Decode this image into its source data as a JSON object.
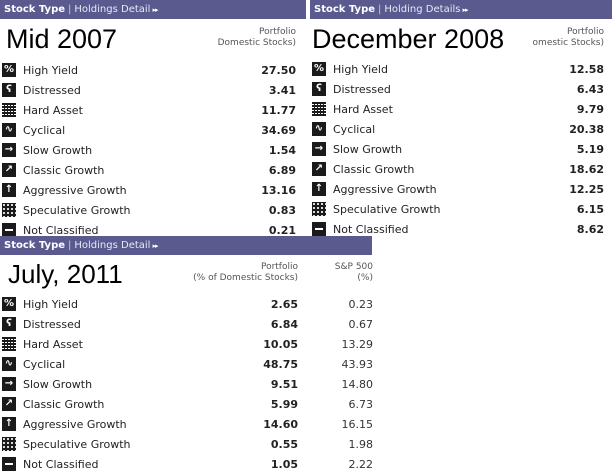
{
  "panels": [
    {
      "tab_stock_type": "Stock Type",
      "sep": "|",
      "tab_holdings": "Holdings Detail",
      "arrows": "▸▸",
      "period": "Mid 2007",
      "col1": [
        "Portfolio",
        "Domestic Stocks)"
      ],
      "rows": [
        {
          "label": "High Yield",
          "v1": "27.50",
          "icon": "high-yield-icon"
        },
        {
          "label": "Distressed",
          "v1": "3.41",
          "icon": "distressed-icon"
        },
        {
          "label": "Hard Asset",
          "v1": "11.77",
          "icon": "hard-asset-icon"
        },
        {
          "label": "Cyclical",
          "v1": "34.69",
          "icon": "cyclical-icon"
        },
        {
          "label": "Slow Growth",
          "v1": "1.54",
          "icon": "slow-growth-icon"
        },
        {
          "label": "Classic Growth",
          "v1": "6.89",
          "icon": "classic-growth-icon"
        },
        {
          "label": "Aggressive Growth",
          "v1": "13.16",
          "icon": "aggressive-growth-icon"
        },
        {
          "label": "Speculative Growth",
          "v1": "0.83",
          "icon": "speculative-growth-icon"
        },
        {
          "label": "Not Classified",
          "v1": "0.21",
          "icon": "not-classified-icon"
        }
      ]
    },
    {
      "tab_stock_type": "Stock Type",
      "sep": "|",
      "tab_holdings": "Holding Details",
      "arrows": "▸▸",
      "period": "December 2008",
      "col1": [
        "Portfolio",
        "omestic Stocks)"
      ],
      "rows": [
        {
          "label": "High Yield",
          "v1": "12.58",
          "icon": "high-yield-icon"
        },
        {
          "label": "Distressed",
          "v1": "6.43",
          "icon": "distressed-icon"
        },
        {
          "label": "Hard Asset",
          "v1": "9.79",
          "icon": "hard-asset-icon"
        },
        {
          "label": "Cyclical",
          "v1": "20.38",
          "icon": "cyclical-icon"
        },
        {
          "label": "Slow Growth",
          "v1": "5.19",
          "icon": "slow-growth-icon"
        },
        {
          "label": "Classic Growth",
          "v1": "18.62",
          "icon": "classic-growth-icon"
        },
        {
          "label": "Aggressive Growth",
          "v1": "12.25",
          "icon": "aggressive-growth-icon"
        },
        {
          "label": "Speculative Growth",
          "v1": "6.15",
          "icon": "speculative-growth-icon"
        },
        {
          "label": "Not Classified",
          "v1": "8.62",
          "icon": "not-classified-icon"
        }
      ]
    },
    {
      "tab_stock_type": "Stock Type",
      "sep": "|",
      "tab_holdings": "Holdings Detail",
      "arrows": "▸▸",
      "period": "July, 2011",
      "col1": [
        "Portfolio",
        "(% of Domestic Stocks)"
      ],
      "col2": [
        "S&P 500",
        "(%)"
      ],
      "rows": [
        {
          "label": "High Yield",
          "v1": "2.65",
          "v2": "0.23",
          "icon": "high-yield-icon"
        },
        {
          "label": "Distressed",
          "v1": "6.84",
          "v2": "0.67",
          "icon": "distressed-icon"
        },
        {
          "label": "Hard Asset",
          "v1": "10.05",
          "v2": "13.29",
          "icon": "hard-asset-icon"
        },
        {
          "label": "Cyclical",
          "v1": "48.75",
          "v2": "43.93",
          "icon": "cyclical-icon"
        },
        {
          "label": "Slow Growth",
          "v1": "9.51",
          "v2": "14.80",
          "icon": "slow-growth-icon"
        },
        {
          "label": "Classic Growth",
          "v1": "5.99",
          "v2": "6.73",
          "icon": "classic-growth-icon"
        },
        {
          "label": "Aggressive Growth",
          "v1": "14.60",
          "v2": "16.15",
          "icon": "aggressive-growth-icon"
        },
        {
          "label": "Speculative Growth",
          "v1": "0.55",
          "v2": "1.98",
          "icon": "speculative-growth-icon"
        },
        {
          "label": "Not Classified",
          "v1": "1.05",
          "v2": "2.22",
          "icon": "not-classified-icon"
        }
      ]
    }
  ],
  "icons": {
    "high-yield-icon": "%",
    "distressed-icon": "ʕ",
    "hard-asset-icon": "",
    "cyclical-icon": "∿",
    "slow-growth-icon": "→",
    "classic-growth-icon": "↗",
    "aggressive-growth-icon": "↑",
    "speculative-growth-icon": "",
    "not-classified-icon": ""
  },
  "colors": {
    "header_bg": "#5a5a8f",
    "header_text": "#ffffff",
    "icon_bg": "#1a1a1a"
  }
}
